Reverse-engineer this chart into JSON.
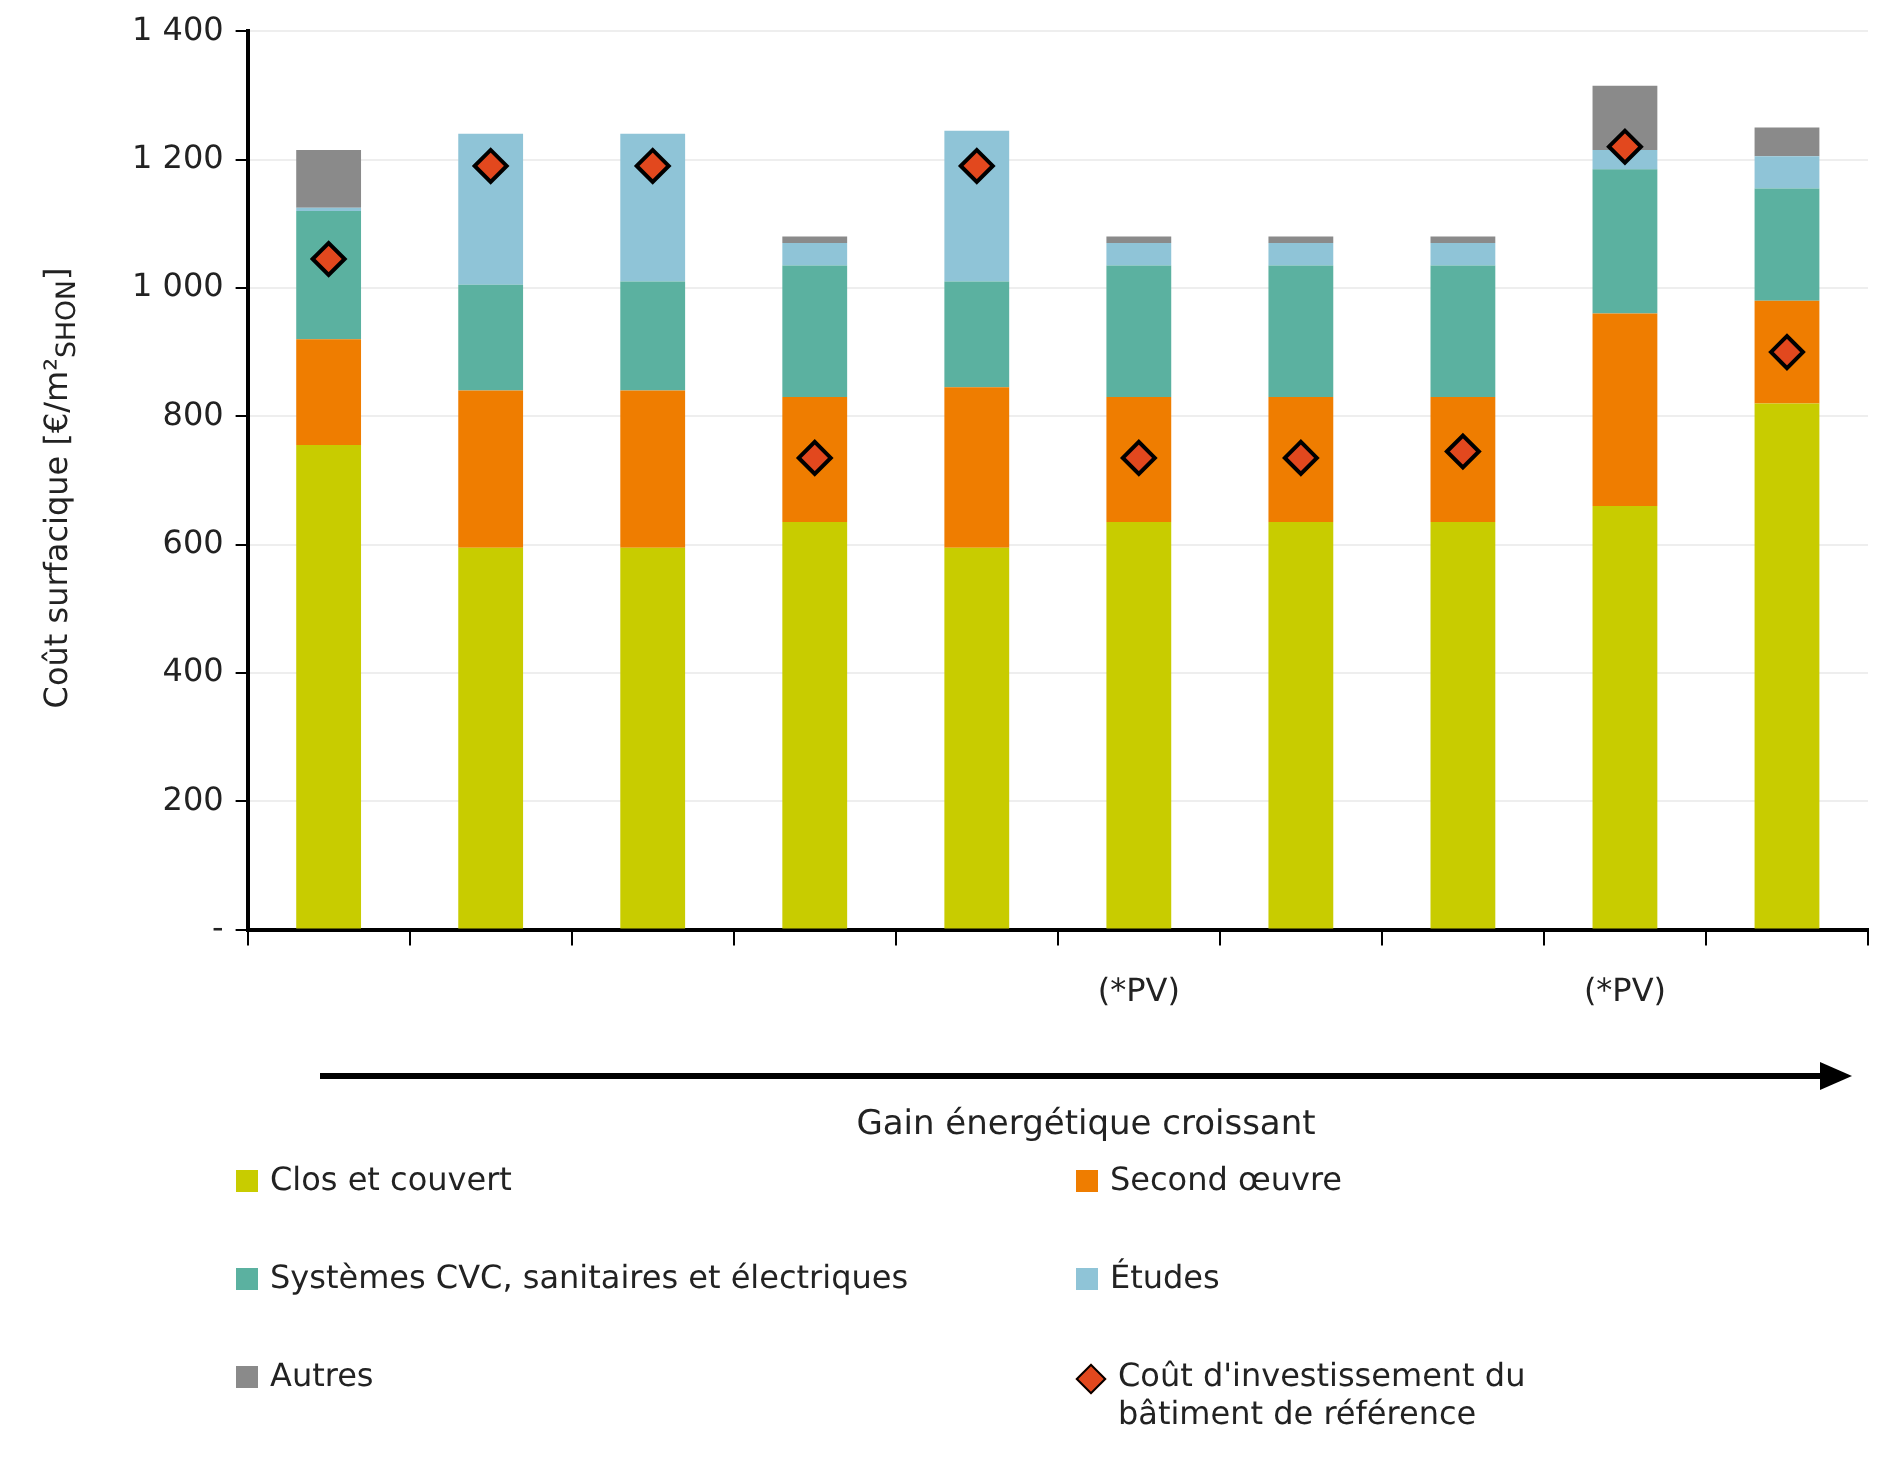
{
  "chart_data": {
    "type": "bar",
    "stacked": true,
    "categories": [
      null,
      null,
      null,
      null,
      null,
      "(*PV)",
      null,
      null,
      "(*PV)",
      null
    ],
    "ylabel": "Coût surfacique [€/m²$_{SHON}$]",
    "xlabel": "Gain énergétique croissant",
    "ylim": [
      0,
      1400
    ],
    "yticks": [
      {
        "value": 0,
        "label": "-"
      },
      200,
      400,
      600,
      800,
      {
        "value": 1000,
        "label": "1 000"
      },
      {
        "value": 1200,
        "label": "1 200"
      },
      {
        "value": 1400,
        "label": "1 400"
      }
    ],
    "grid": "y",
    "legend": "bottom",
    "marker": "diamond",
    "series": [
      {
        "name": "Clos et couvert",
        "color": "#c8cc00",
        "values": [
          755,
          595,
          595,
          635,
          595,
          635,
          635,
          635,
          660,
          820
        ]
      },
      {
        "name": "Second œuvre",
        "color": "#ef7d00",
        "values": [
          165,
          245,
          245,
          195,
          250,
          195,
          195,
          195,
          300,
          160
        ]
      },
      {
        "name": "Systèmes CVC, sanitaires et électriques",
        "color": "#5bb1a0",
        "values": [
          200,
          165,
          170,
          205,
          165,
          205,
          205,
          205,
          225,
          175
        ]
      },
      {
        "name": "Études",
        "color": "#8fc4d7",
        "values": [
          5,
          235,
          230,
          35,
          235,
          35,
          35,
          35,
          30,
          50
        ]
      },
      {
        "name": "Autres",
        "color": "#8a8a8a",
        "values": [
          90,
          0,
          0,
          10,
          0,
          10,
          10,
          10,
          100,
          45
        ]
      },
      {
        "name": "Coût d'investissement du bâtiment de référence",
        "type": "scatter",
        "color": "#e2481e",
        "values": [
          1045,
          1190,
          1190,
          735,
          1190,
          735,
          735,
          745,
          1220,
          900
        ]
      }
    ]
  }
}
